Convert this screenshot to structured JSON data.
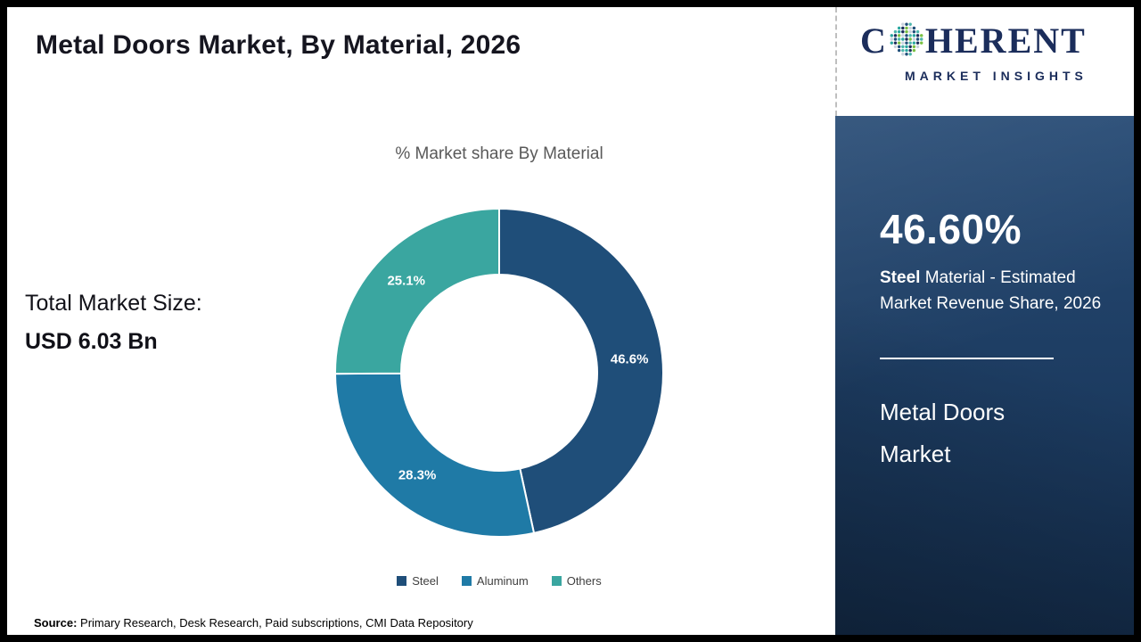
{
  "header": {
    "title": "Metal Doors Market, By Material, 2026"
  },
  "summary": {
    "total_label": "Total Market Size:",
    "total_value": "USD 6.03 Bn"
  },
  "chart_data": {
    "type": "pie",
    "donut": true,
    "title": "% Market share By Material",
    "categories": [
      "Steel",
      "Aluminum",
      "Others"
    ],
    "values": [
      46.6,
      28.3,
      25.1
    ],
    "data_labels": [
      "46.6%",
      "28.3%",
      "25.1%"
    ],
    "colors": [
      "#1f4e79",
      "#1f7aa6",
      "#3aa6a0"
    ],
    "legend_position": "bottom",
    "start_angle_deg": 0,
    "direction": "clockwise"
  },
  "footer": {
    "source_label": "Source:",
    "source_text": "Primary Research, Desk Research, Paid subscriptions, CMI Data Repository"
  },
  "sidebar": {
    "logo": {
      "line1_prefix": "C",
      "line1_suffix": "HERENT",
      "line2": "MARKET INSIGHTS"
    },
    "highlight": {
      "value": "46.60%",
      "desc_bold": "Steel",
      "desc_rest": "Material - Estimated Market Revenue Share, 2026"
    },
    "report_name_line1": "Metal Doors",
    "report_name_line2": "Market",
    "colors": {
      "panel": "#1d3c63",
      "steel": "#1f4e79",
      "aluminum": "#1f7aa6",
      "others": "#3aa6a0"
    }
  }
}
